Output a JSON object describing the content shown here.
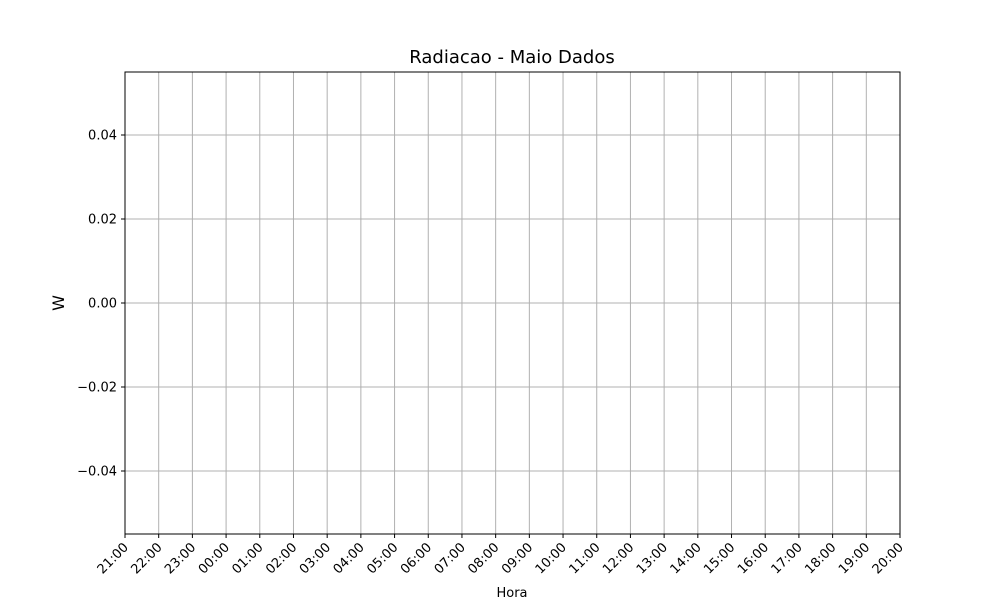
{
  "chart_data": {
    "type": "line",
    "title": "Radiacao - Maio Dados",
    "xlabel": "Hora",
    "ylabel": "W",
    "x_ticks": [
      "21:00",
      "22:00",
      "23:00",
      "00:00",
      "01:00",
      "02:00",
      "03:00",
      "04:00",
      "05:00",
      "06:00",
      "07:00",
      "08:00",
      "09:00",
      "10:00",
      "11:00",
      "12:00",
      "13:00",
      "14:00",
      "15:00",
      "16:00",
      "17:00",
      "18:00",
      "19:00",
      "20:00"
    ],
    "y_ticks": [
      0.04,
      0.02,
      0.0,
      -0.02,
      -0.04
    ],
    "y_tick_labels": [
      "0.04",
      "0.02",
      "0.00",
      "−0.02",
      "−0.04"
    ],
    "ylim": [
      -0.055,
      0.055
    ],
    "grid": true,
    "series": [],
    "colors": {
      "grid": "#b0b0b0",
      "axis": "#000000"
    }
  }
}
